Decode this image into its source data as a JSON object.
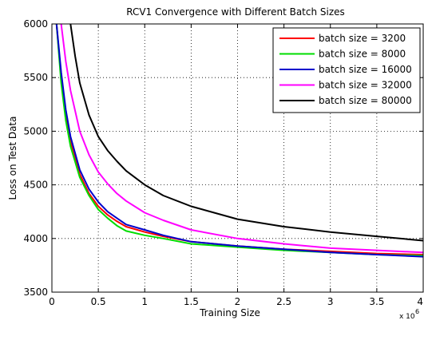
{
  "chart_data": {
    "type": "line",
    "title": "RCV1 Convergence with Different Batch Sizes",
    "xlabel": "Training Size",
    "ylabel": "Loss on Test Data",
    "x_exponent_base": "x 10",
    "x_exponent_power": "6",
    "xlim": [
      0,
      4
    ],
    "ylim": [
      3500,
      6000
    ],
    "xticks": [
      "0",
      "0.5",
      "1",
      "1.5",
      "2",
      "2.5",
      "3",
      "3.5",
      "4"
    ],
    "yticks": [
      "3500",
      "4000",
      "4500",
      "5000",
      "5500",
      "6000"
    ],
    "grid": true,
    "legend_position": "top-right",
    "series": [
      {
        "name": "batch size = 3200",
        "color": "#ff0000",
        "x": [
          0.05,
          0.1,
          0.15,
          0.2,
          0.3,
          0.4,
          0.5,
          0.6,
          0.7,
          0.8,
          1.0,
          1.2,
          1.5,
          2.0,
          2.5,
          3.0,
          3.5,
          4.0
        ],
        "y": [
          6000,
          5500,
          5150,
          4900,
          4600,
          4420,
          4300,
          4220,
          4160,
          4110,
          4060,
          4020,
          3970,
          3930,
          3900,
          3880,
          3860,
          3850
        ]
      },
      {
        "name": "batch size = 8000",
        "color": "#00dd00",
        "x": [
          0.05,
          0.1,
          0.15,
          0.2,
          0.3,
          0.4,
          0.5,
          0.6,
          0.7,
          0.8,
          1.0,
          1.2,
          1.5,
          2.0,
          2.5,
          3.0,
          3.5,
          4.0
        ],
        "y": [
          6000,
          5450,
          5100,
          4860,
          4570,
          4400,
          4270,
          4190,
          4120,
          4070,
          4030,
          4000,
          3950,
          3920,
          3890,
          3870,
          3850,
          3840
        ]
      },
      {
        "name": "batch size = 16000",
        "color": "#0000cc",
        "x": [
          0.05,
          0.1,
          0.15,
          0.2,
          0.3,
          0.4,
          0.5,
          0.6,
          0.7,
          0.8,
          1.0,
          1.2,
          1.5,
          2.0,
          2.5,
          3.0,
          3.5,
          4.0
        ],
        "y": [
          6000,
          5550,
          5200,
          4950,
          4640,
          4460,
          4340,
          4250,
          4190,
          4130,
          4080,
          4030,
          3970,
          3930,
          3900,
          3870,
          3850,
          3830
        ]
      },
      {
        "name": "batch size = 32000",
        "color": "#ff00ff",
        "x": [
          0.1,
          0.15,
          0.2,
          0.3,
          0.4,
          0.5,
          0.6,
          0.7,
          0.8,
          1.0,
          1.2,
          1.5,
          2.0,
          2.5,
          3.0,
          3.5,
          4.0
        ],
        "y": [
          6000,
          5650,
          5380,
          5000,
          4780,
          4620,
          4510,
          4420,
          4350,
          4240,
          4170,
          4080,
          4000,
          3950,
          3910,
          3890,
          3870
        ]
      },
      {
        "name": "batch size = 80000",
        "color": "#000000",
        "x": [
          0.2,
          0.25,
          0.3,
          0.4,
          0.5,
          0.6,
          0.7,
          0.8,
          1.0,
          1.2,
          1.5,
          2.0,
          2.5,
          3.0,
          3.5,
          4.0
        ],
        "y": [
          6000,
          5700,
          5450,
          5150,
          4950,
          4820,
          4720,
          4630,
          4500,
          4400,
          4300,
          4180,
          4110,
          4060,
          4020,
          3980
        ]
      }
    ]
  }
}
